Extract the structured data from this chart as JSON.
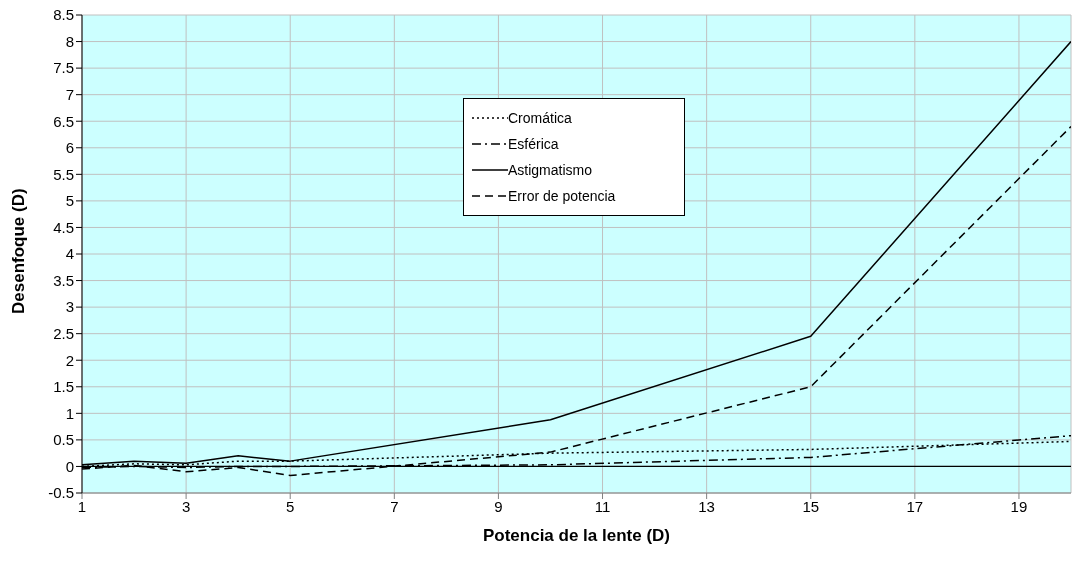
{
  "chart_data": {
    "type": "line",
    "xlabel": "Potencia de la lente (D)",
    "ylabel": "Desenfoque (D)",
    "x": [
      1,
      2,
      3,
      4,
      5,
      10,
      15,
      20
    ],
    "series": [
      {
        "name": "Cromática",
        "color": "#000000",
        "line_style": "dotted",
        "values": [
          0.0,
          0.05,
          0.03,
          0.1,
          0.1,
          0.25,
          0.32,
          0.47
        ]
      },
      {
        "name": "Esférica",
        "color": "#000000",
        "line_style": "dashdot",
        "values": [
          -0.02,
          0.0,
          -0.02,
          0.0,
          0.0,
          0.03,
          0.17,
          0.58
        ]
      },
      {
        "name": "Astigmatismo",
        "color": "#000000",
        "line_style": "solid",
        "values": [
          0.03,
          0.1,
          0.06,
          0.2,
          0.1,
          0.88,
          2.45,
          8.0
        ]
      },
      {
        "name": "Error de potencia",
        "color": "#000000",
        "line_style": "dashed",
        "values": [
          -0.05,
          0.02,
          -0.1,
          -0.02,
          -0.17,
          0.27,
          1.5,
          6.4
        ]
      }
    ],
    "xlim": [
      1,
      20
    ],
    "xticks": [
      1,
      3,
      5,
      7,
      9,
      11,
      13,
      15,
      17,
      19
    ],
    "ylim": [
      -0.5,
      8.5
    ],
    "yticks": [
      -0.5,
      0,
      0.5,
      1,
      1.5,
      2,
      2.5,
      3,
      3.5,
      4,
      4.5,
      5,
      5.5,
      6,
      6.5,
      7,
      7.5,
      8,
      8.5
    ],
    "ref_lines": [
      {
        "axis": "y",
        "value": 0,
        "color": "#000000"
      }
    ],
    "grid": true,
    "legend": "top",
    "marker": "none"
  }
}
